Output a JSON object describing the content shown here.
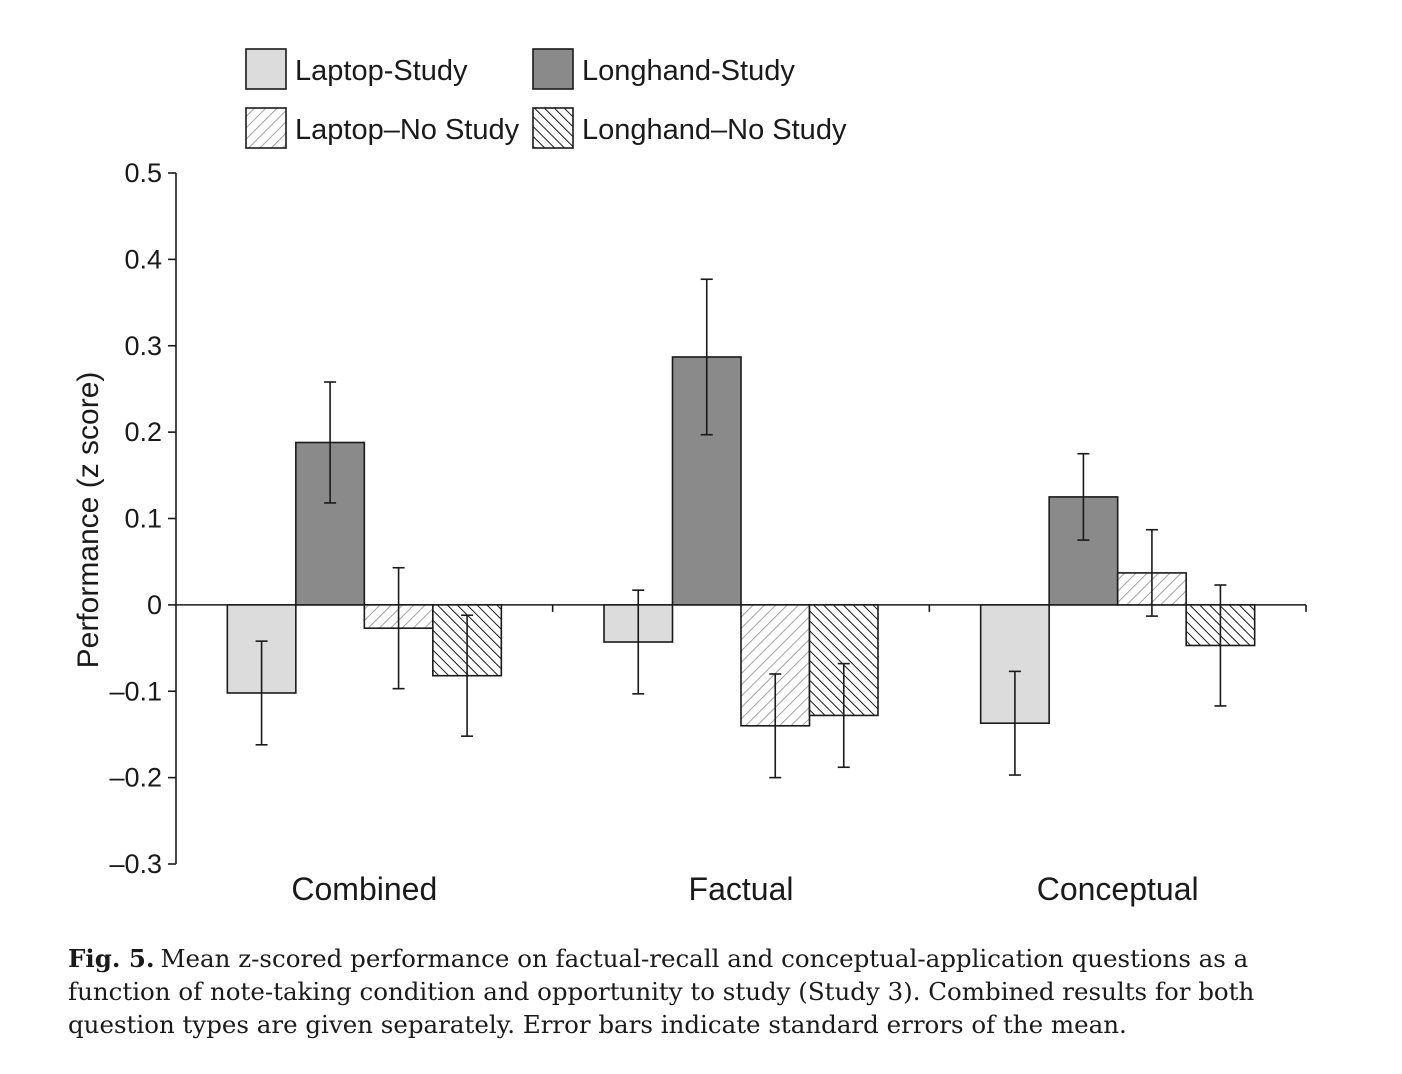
{
  "chart_data": {
    "type": "bar",
    "ylabel": "Performance (z score)",
    "ylim": [
      -0.3,
      0.5
    ],
    "yticks": [
      "0.5",
      "0.4",
      "0.3",
      "0.2",
      "0.1",
      "0",
      "–0.1",
      "–0.2",
      "–0.3"
    ],
    "ytick_values": [
      0.5,
      0.4,
      0.3,
      0.2,
      0.1,
      0,
      -0.1,
      -0.2,
      -0.3
    ],
    "categories": [
      "Combined",
      "Factual",
      "Conceptual"
    ],
    "legend_placement": "top",
    "series": [
      {
        "name": "Laptop-Study",
        "fill": "solid",
        "color": "#dcdcdc",
        "values": [
          -0.102,
          -0.043,
          -0.137
        ],
        "errors": [
          0.06,
          0.06,
          0.06
        ]
      },
      {
        "name": "Longhand-Study",
        "fill": "solid",
        "color": "#8a8a8a",
        "values": [
          0.188,
          0.287,
          0.125
        ],
        "errors": [
          0.07,
          0.09,
          0.05
        ]
      },
      {
        "name": "Laptop–No Study",
        "fill": "light-hatch",
        "color": "#ffffff",
        "values": [
          -0.027,
          -0.14,
          0.037
        ],
        "errors": [
          0.07,
          0.06,
          0.05
        ]
      },
      {
        "name": "Longhand–No Study",
        "fill": "dense-hatch",
        "color": "#ffffff",
        "values": [
          -0.082,
          -0.128,
          -0.047
        ],
        "errors": [
          0.07,
          0.06,
          0.07
        ]
      }
    ]
  },
  "caption": {
    "label": "Fig. 5.",
    "text": "Mean z-scored performance on factual-recall and conceptual-application questions as a function of note-taking condition and opportunity to study (Study 3). Combined results for both question types are given separately. Error bars indicate standard errors of the mean."
  }
}
